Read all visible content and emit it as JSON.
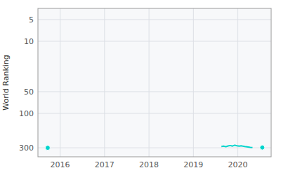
{
  "chart_data": {
    "type": "line",
    "log": "y",
    "grid": true,
    "ylabel": "World Ranking",
    "xlim": [
      2015.5,
      2020.75
    ],
    "xticks": [
      2016,
      2017,
      2018,
      2019,
      2020
    ],
    "ylim": [
      400,
      3.5
    ],
    "yticks": [
      5,
      10,
      50,
      100,
      300
    ],
    "series": [
      {
        "color": "#00d4cc",
        "marker": "circle",
        "x": [
          2015.72
        ],
        "values": [
          300
        ]
      },
      {
        "color": "#00d4cc",
        "marker": "none",
        "x": [
          2019.63,
          2019.68,
          2019.73,
          2019.78,
          2019.83,
          2019.88,
          2019.93,
          2019.98,
          2020.03,
          2020.08,
          2020.13,
          2020.18,
          2020.23,
          2020.28,
          2020.33
        ],
        "values": [
          288,
          285,
          290,
          283,
          279,
          284,
          276,
          281,
          284,
          282,
          286,
          290,
          293,
          296,
          298
        ]
      },
      {
        "color": "#00d4cc",
        "marker": "circle",
        "x": [
          2020.55
        ],
        "values": [
          297
        ]
      }
    ]
  }
}
